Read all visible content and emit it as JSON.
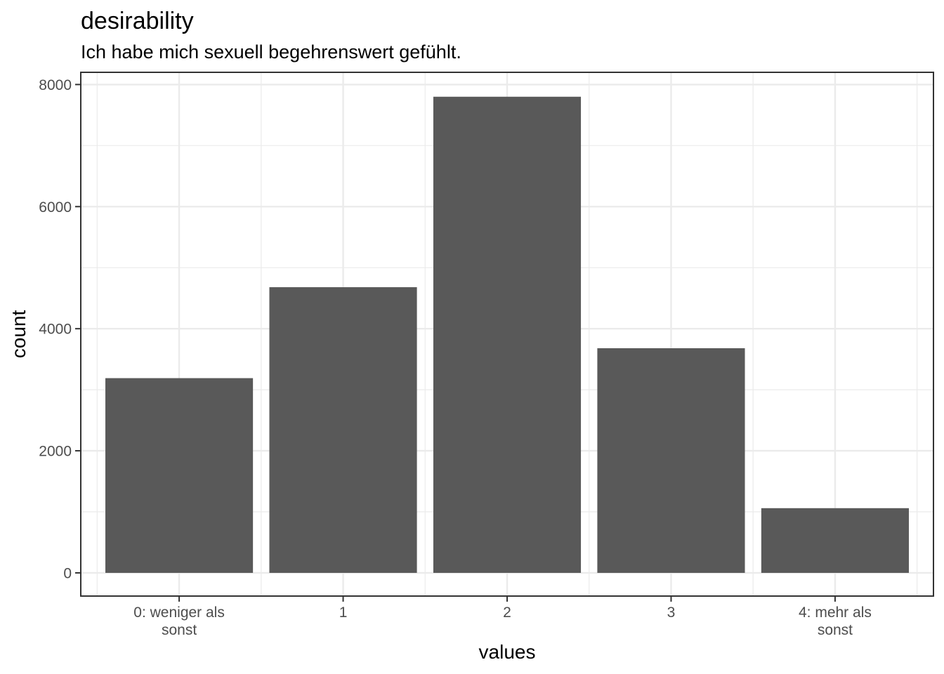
{
  "chart_data": {
    "type": "bar",
    "title": "desirability",
    "subtitle": "Ich habe mich sexuell begehrenswert gefühlt.",
    "xlabel": "values",
    "ylabel": "count",
    "categories": [
      "0: weniger als sonst",
      "1",
      "2",
      "3",
      "4: mehr als sonst"
    ],
    "category_lines": [
      [
        "0: weniger als",
        "sonst"
      ],
      [
        "1"
      ],
      [
        "2"
      ],
      [
        "3"
      ],
      [
        "4: mehr als",
        "sonst"
      ]
    ],
    "values": [
      3190,
      4680,
      7800,
      3680,
      1060
    ],
    "ylim": [
      -380,
      8200
    ],
    "yticks": [
      0,
      2000,
      4000,
      6000,
      8000
    ],
    "ytick_labels": [
      "0",
      "2000",
      "4000",
      "6000",
      "8000"
    ],
    "grid": true,
    "bar_color": "#595959"
  }
}
